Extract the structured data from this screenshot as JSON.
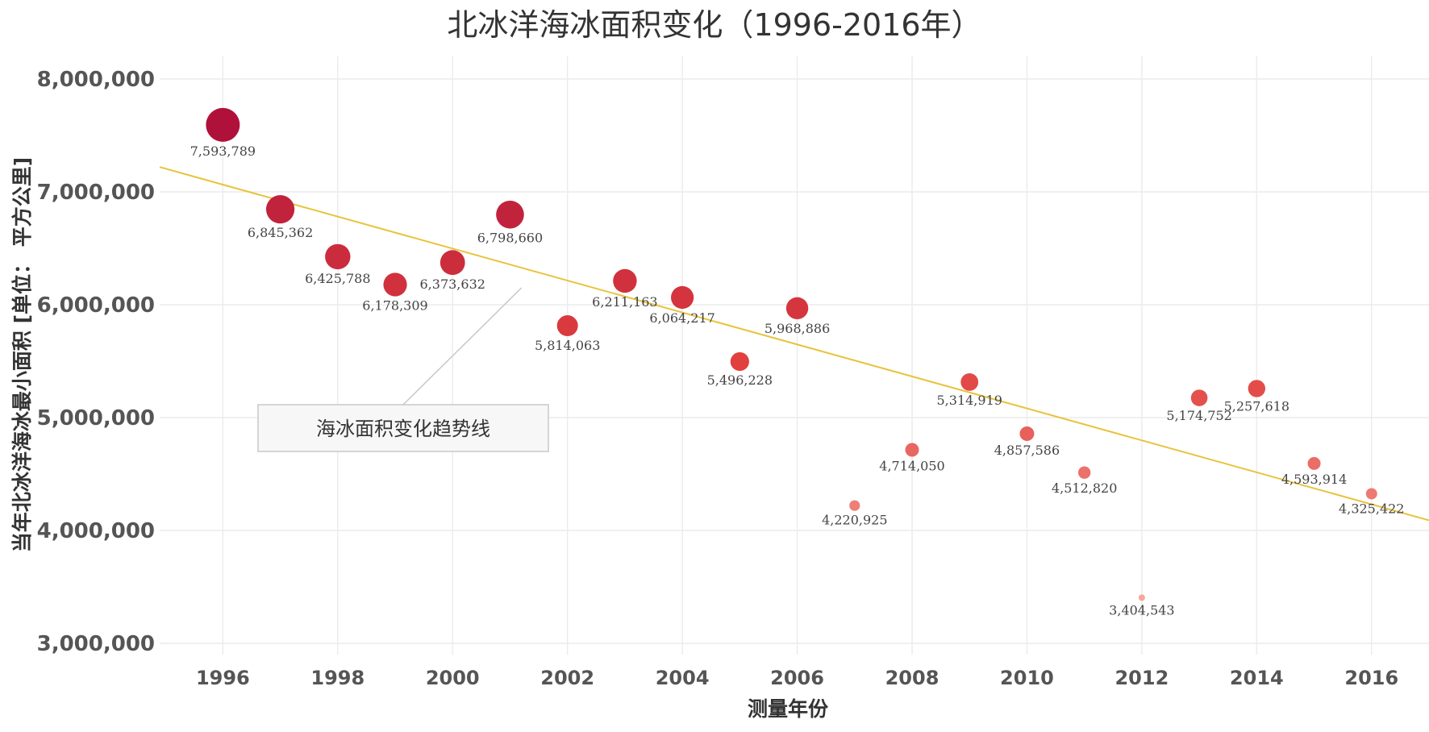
{
  "chart_data": {
    "type": "scatter",
    "title": "北冰洋海冰面积变化（1996-2016年）",
    "xlabel": "测量年份",
    "ylabel": "当年北冰洋海冰最小面积 [单位： 平方公里]",
    "xlim": [
      1994.9,
      2017
    ],
    "ylim": [
      2900000,
      8200000
    ],
    "x_ticks": [
      1996,
      1998,
      2000,
      2002,
      2004,
      2006,
      2008,
      2010,
      2012,
      2014,
      2016
    ],
    "y_ticks": [
      3000000,
      4000000,
      5000000,
      6000000,
      7000000,
      8000000
    ],
    "y_tick_labels": [
      "3,000,000",
      "4,000,000",
      "5,000,000",
      "6,000,000",
      "7,000,000",
      "8,000,000"
    ],
    "grid": true,
    "points": [
      {
        "x": 1996,
        "y": 7593789,
        "label": "7,593,789"
      },
      {
        "x": 1997,
        "y": 6845362,
        "label": "6,845,362"
      },
      {
        "x": 1998,
        "y": 6425788,
        "label": "6,425,788"
      },
      {
        "x": 1999,
        "y": 6178309,
        "label": "6,178,309"
      },
      {
        "x": 2000,
        "y": 6373632,
        "label": "6,373,632"
      },
      {
        "x": 2001,
        "y": 6798660,
        "label": "6,798,660"
      },
      {
        "x": 2002,
        "y": 5814063,
        "label": "5,814,063"
      },
      {
        "x": 2003,
        "y": 6211163,
        "label": "6,211,163"
      },
      {
        "x": 2004,
        "y": 6064217,
        "label": "6,064,217"
      },
      {
        "x": 2005,
        "y": 5496228,
        "label": "5,496,228"
      },
      {
        "x": 2006,
        "y": 5968886,
        "label": "5,968,886"
      },
      {
        "x": 2007,
        "y": 4220925,
        "label": "4,220,925"
      },
      {
        "x": 2008,
        "y": 4714050,
        "label": "4,714,050"
      },
      {
        "x": 2009,
        "y": 5314919,
        "label": "5,314,919"
      },
      {
        "x": 2010,
        "y": 4857586,
        "label": "4,857,586"
      },
      {
        "x": 2011,
        "y": 4512820,
        "label": "4,512,820"
      },
      {
        "x": 2012,
        "y": 3404543,
        "label": "3,404,543"
      },
      {
        "x": 2013,
        "y": 5174752,
        "label": "5,174,752"
      },
      {
        "x": 2014,
        "y": 5257618,
        "label": "5,257,618"
      },
      {
        "x": 2015,
        "y": 4593914,
        "label": "4,593,914"
      },
      {
        "x": 2016,
        "y": 4325422,
        "label": "4,325,422"
      }
    ],
    "trend_line": {
      "x": [
        1994.9,
        2017
      ],
      "y": [
        7220000,
        4090000
      ]
    },
    "annotation": {
      "text": "海冰面积变化趋势线",
      "target": {
        "x": 2001.2,
        "y": 6150000
      }
    },
    "colors": {
      "high": "#b0113a",
      "mid": "#e0413f",
      "low": "#f7a79a",
      "trend": "#e8c33a"
    }
  }
}
